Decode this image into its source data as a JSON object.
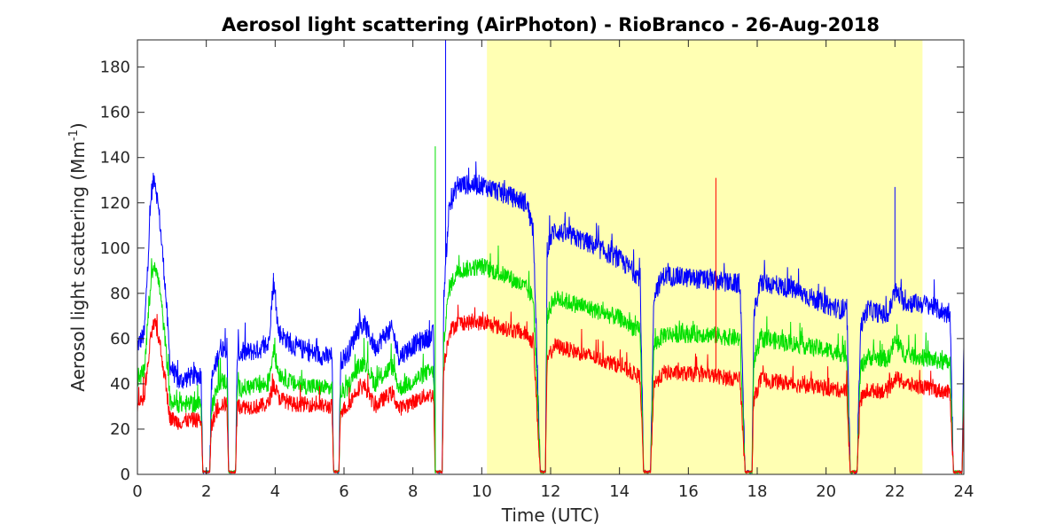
{
  "chart_data": {
    "type": "line",
    "title": "Aerosol light scattering (AirPhoton) - RioBranco - 26-Aug-2018",
    "xlabel": "Time (UTC)",
    "ylabel_main": "Aerosol light scattering (Mm",
    "ylabel_sup": "-1",
    "ylabel_close": ")",
    "xlim": [
      0,
      24
    ],
    "ylim": [
      0,
      192
    ],
    "x_ticks": [
      0,
      2,
      4,
      6,
      8,
      10,
      12,
      14,
      16,
      18,
      20,
      22,
      24
    ],
    "y_ticks": [
      0,
      20,
      40,
      60,
      80,
      100,
      120,
      140,
      160,
      180
    ],
    "highlight_span": {
      "x_start": 10.15,
      "x_end": 22.8,
      "color": "#ffffb3"
    },
    "series": [
      {
        "color": "#0000ff",
        "noise": 4.5,
        "points": [
          [
            0,
            57
          ],
          [
            0.2,
            62
          ],
          [
            0.4,
            124
          ],
          [
            0.5,
            132
          ],
          [
            0.65,
            112
          ],
          [
            0.8,
            85
          ],
          [
            0.95,
            48
          ],
          [
            1.2,
            41
          ],
          [
            1.5,
            43
          ],
          [
            1.85,
            44
          ],
          [
            1.9,
            0.5
          ],
          [
            2.1,
            0.5
          ],
          [
            2.15,
            41
          ],
          [
            2.4,
            56
          ],
          [
            2.6,
            56
          ],
          [
            2.65,
            0.5
          ],
          [
            2.85,
            0.5
          ],
          [
            2.9,
            53
          ],
          [
            3.5,
            55
          ],
          [
            3.8,
            57
          ],
          [
            3.95,
            85
          ],
          [
            4.1,
            63
          ],
          [
            4.5,
            57
          ],
          [
            5.0,
            54
          ],
          [
            5.5,
            52
          ],
          [
            5.65,
            52
          ],
          [
            5.7,
            0.5
          ],
          [
            5.85,
            0.5
          ],
          [
            5.9,
            50
          ],
          [
            6.1,
            53
          ],
          [
            6.4,
            64
          ],
          [
            6.6,
            66
          ],
          [
            6.9,
            56
          ],
          [
            7.2,
            62
          ],
          [
            7.4,
            64
          ],
          [
            7.6,
            52
          ],
          [
            8.0,
            57
          ],
          [
            8.4,
            60
          ],
          [
            8.6,
            62
          ],
          [
            8.65,
            0.5
          ],
          [
            8.85,
            0.5
          ],
          [
            8.9,
            80
          ],
          [
            9.05,
            118
          ],
          [
            9.3,
            128
          ],
          [
            10,
            128
          ],
          [
            10.8,
            123
          ],
          [
            11.3,
            120
          ],
          [
            11.5,
            108
          ],
          [
            11.7,
            0.5
          ],
          [
            11.85,
            0.5
          ],
          [
            11.9,
            100
          ],
          [
            12.1,
            108
          ],
          [
            13,
            103
          ],
          [
            14,
            95
          ],
          [
            14.6,
            87
          ],
          [
            14.7,
            0.5
          ],
          [
            14.9,
            0.5
          ],
          [
            15.0,
            80
          ],
          [
            15.3,
            88
          ],
          [
            16.5,
            86
          ],
          [
            17.5,
            84
          ],
          [
            17.65,
            0.5
          ],
          [
            17.85,
            0.5
          ],
          [
            17.9,
            70
          ],
          [
            18.1,
            85
          ],
          [
            19,
            82
          ],
          [
            20,
            75
          ],
          [
            20.6,
            72
          ],
          [
            20.7,
            0.5
          ],
          [
            20.9,
            0.5
          ],
          [
            21.0,
            65
          ],
          [
            21.2,
            73
          ],
          [
            21.8,
            70
          ],
          [
            22.0,
            81
          ],
          [
            22.3,
            76
          ],
          [
            23.0,
            75
          ],
          [
            23.6,
            70
          ],
          [
            23.7,
            0.5
          ],
          [
            23.95,
            0.5
          ],
          [
            24,
            60
          ]
        ]
      },
      {
        "color": "#00e000",
        "noise": 4,
        "points": [
          [
            0,
            40
          ],
          [
            0.2,
            46
          ],
          [
            0.4,
            87
          ],
          [
            0.5,
            94
          ],
          [
            0.65,
            82
          ],
          [
            0.8,
            60
          ],
          [
            0.95,
            32
          ],
          [
            1.2,
            31
          ],
          [
            1.5,
            31
          ],
          [
            1.85,
            31
          ],
          [
            1.9,
            0.5
          ],
          [
            2.1,
            0.5
          ],
          [
            2.15,
            30
          ],
          [
            2.4,
            41
          ],
          [
            2.6,
            41
          ],
          [
            2.65,
            0.5
          ],
          [
            2.85,
            0.5
          ],
          [
            2.9,
            38
          ],
          [
            3.5,
            39
          ],
          [
            3.8,
            40
          ],
          [
            3.95,
            55
          ],
          [
            4.1,
            45
          ],
          [
            4.5,
            40
          ],
          [
            5.0,
            39
          ],
          [
            5.5,
            38
          ],
          [
            5.65,
            38
          ],
          [
            5.7,
            0.5
          ],
          [
            5.85,
            0.5
          ],
          [
            5.9,
            36
          ],
          [
            6.1,
            38
          ],
          [
            6.4,
            47
          ],
          [
            6.6,
            50
          ],
          [
            6.9,
            40
          ],
          [
            7.2,
            45
          ],
          [
            7.4,
            48
          ],
          [
            7.6,
            38
          ],
          [
            8.0,
            41
          ],
          [
            8.4,
            45
          ],
          [
            8.6,
            45
          ],
          [
            8.65,
            0.5
          ],
          [
            8.85,
            0.5
          ],
          [
            8.9,
            60
          ],
          [
            9.05,
            82
          ],
          [
            9.3,
            90
          ],
          [
            10,
            92
          ],
          [
            10.8,
            87
          ],
          [
            11.3,
            82
          ],
          [
            11.5,
            78
          ],
          [
            11.7,
            0.5
          ],
          [
            11.85,
            0.5
          ],
          [
            11.9,
            70
          ],
          [
            12.1,
            78
          ],
          [
            13,
            74
          ],
          [
            14,
            69
          ],
          [
            14.6,
            63
          ],
          [
            14.7,
            0.5
          ],
          [
            14.9,
            0.5
          ],
          [
            15.0,
            57
          ],
          [
            15.3,
            62
          ],
          [
            16.5,
            62
          ],
          [
            17.5,
            60
          ],
          [
            17.65,
            0.5
          ],
          [
            17.85,
            0.5
          ],
          [
            17.9,
            50
          ],
          [
            18.1,
            60
          ],
          [
            19,
            58
          ],
          [
            20,
            55
          ],
          [
            20.6,
            53
          ],
          [
            20.7,
            0.5
          ],
          [
            20.9,
            0.5
          ],
          [
            21.0,
            47
          ],
          [
            21.2,
            52
          ],
          [
            21.8,
            51
          ],
          [
            22.0,
            59
          ],
          [
            22.3,
            53
          ],
          [
            23.0,
            51
          ],
          [
            23.6,
            49
          ],
          [
            23.7,
            0.5
          ],
          [
            23.95,
            0.5
          ],
          [
            24,
            43
          ]
        ]
      },
      {
        "color": "#ff0000",
        "noise": 3.5,
        "points": [
          [
            0,
            30
          ],
          [
            0.2,
            33
          ],
          [
            0.4,
            62
          ],
          [
            0.5,
            67
          ],
          [
            0.65,
            58
          ],
          [
            0.8,
            42
          ],
          [
            0.95,
            25
          ],
          [
            1.2,
            23
          ],
          [
            1.5,
            24
          ],
          [
            1.85,
            24
          ],
          [
            1.9,
            0.5
          ],
          [
            2.1,
            0.5
          ],
          [
            2.15,
            22
          ],
          [
            2.4,
            31
          ],
          [
            2.6,
            31
          ],
          [
            2.65,
            0.5
          ],
          [
            2.85,
            0.5
          ],
          [
            2.9,
            30
          ],
          [
            3.5,
            30
          ],
          [
            3.8,
            31
          ],
          [
            3.95,
            40
          ],
          [
            4.1,
            34
          ],
          [
            4.5,
            31
          ],
          [
            5.0,
            31
          ],
          [
            5.5,
            30
          ],
          [
            5.65,
            30
          ],
          [
            5.7,
            0.5
          ],
          [
            5.85,
            0.5
          ],
          [
            5.9,
            28
          ],
          [
            6.1,
            30
          ],
          [
            6.4,
            38
          ],
          [
            6.6,
            39
          ],
          [
            6.9,
            30
          ],
          [
            7.2,
            34
          ],
          [
            7.4,
            36
          ],
          [
            7.6,
            29
          ],
          [
            8.0,
            32
          ],
          [
            8.4,
            35
          ],
          [
            8.6,
            35
          ],
          [
            8.65,
            0.5
          ],
          [
            8.85,
            0.5
          ],
          [
            8.9,
            48
          ],
          [
            9.05,
            63
          ],
          [
            9.3,
            67
          ],
          [
            10,
            67
          ],
          [
            10.8,
            64
          ],
          [
            11.3,
            62
          ],
          [
            11.5,
            58
          ],
          [
            11.7,
            0.5
          ],
          [
            11.85,
            0.5
          ],
          [
            11.9,
            50
          ],
          [
            12.1,
            57
          ],
          [
            13,
            53
          ],
          [
            14,
            48
          ],
          [
            14.6,
            43
          ],
          [
            14.7,
            0.5
          ],
          [
            14.9,
            0.5
          ],
          [
            15.0,
            40
          ],
          [
            15.3,
            45
          ],
          [
            16.5,
            44
          ],
          [
            17.5,
            42
          ],
          [
            17.65,
            0.5
          ],
          [
            17.85,
            0.5
          ],
          [
            17.9,
            33
          ],
          [
            18.1,
            42
          ],
          [
            19,
            40
          ],
          [
            20,
            38
          ],
          [
            20.6,
            37
          ],
          [
            20.7,
            0.5
          ],
          [
            20.9,
            0.5
          ],
          [
            21.0,
            33
          ],
          [
            21.2,
            37
          ],
          [
            21.8,
            37
          ],
          [
            22.0,
            43
          ],
          [
            22.3,
            40
          ],
          [
            23.0,
            38
          ],
          [
            23.6,
            36
          ],
          [
            23.7,
            0.5
          ],
          [
            23.95,
            0.5
          ],
          [
            24,
            32
          ]
        ]
      }
    ],
    "spikes": [
      {
        "x": 8.65,
        "y": 145,
        "color": "#00e000"
      },
      {
        "x": 8.95,
        "y": 192,
        "color": "#0000ff"
      },
      {
        "x": 16.8,
        "y": 131,
        "color": "#ff0000"
      },
      {
        "x": 22.0,
        "y": 127,
        "color": "#0000ff"
      },
      {
        "x": 3.95,
        "y": 89,
        "color": "#0000ff"
      }
    ]
  }
}
